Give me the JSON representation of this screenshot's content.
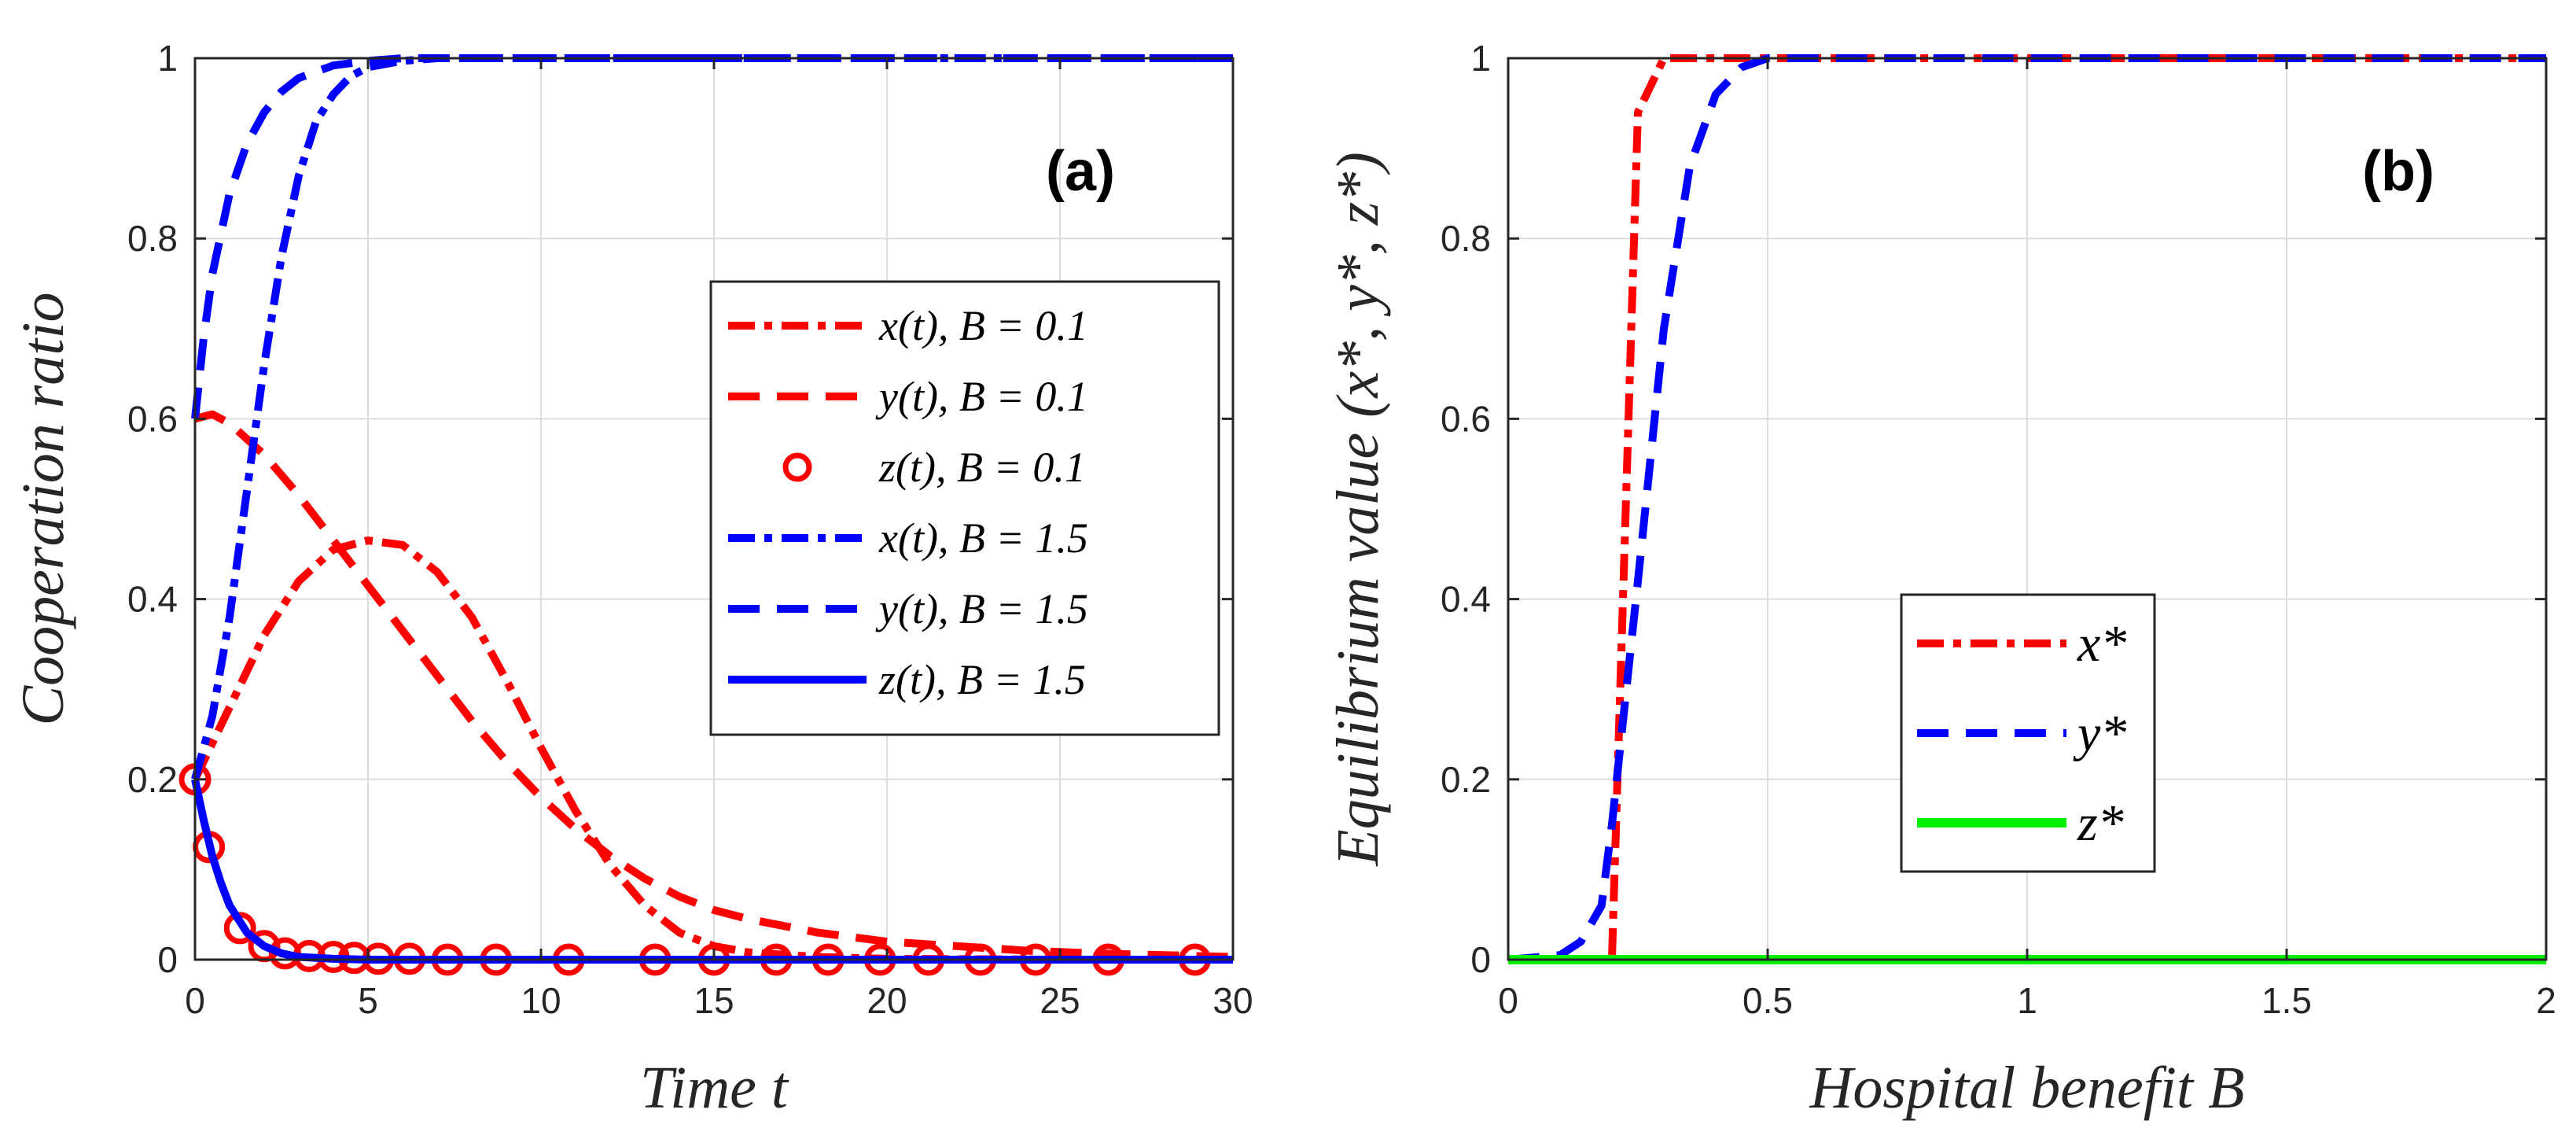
{
  "chart_data": [
    {
      "type": "line",
      "panel_label": "(a)",
      "xlabel": "Time  t",
      "ylabel": "Cooperation  ratio",
      "xlim": [
        0,
        30
      ],
      "ylim": [
        0,
        1
      ],
      "xticks": [
        0,
        5,
        10,
        15,
        20,
        25,
        30
      ],
      "yticks": [
        0,
        0.2,
        0.4,
        0.6,
        0.8,
        1
      ],
      "ytick_labels": [
        "0",
        "0.2",
        "0.4",
        "0.6",
        "0.8",
        "1"
      ],
      "grid": true,
      "legend_position": "center-right",
      "series": [
        {
          "name": "x(t), B = 0.1",
          "color": "#ff0000",
          "dash": "dashdot",
          "x": [
            0,
            1,
            2,
            3,
            4,
            5,
            6,
            7,
            8,
            9,
            10,
            11,
            12,
            13,
            14,
            15,
            16,
            18,
            20,
            25,
            30
          ],
          "y": [
            0.2,
            0.28,
            0.36,
            0.42,
            0.455,
            0.465,
            0.46,
            0.43,
            0.38,
            0.31,
            0.235,
            0.165,
            0.105,
            0.06,
            0.03,
            0.015,
            0.008,
            0.003,
            0.001,
            0,
            0
          ]
        },
        {
          "name": "y(t), B = 0.1",
          "color": "#ff0000",
          "dash": "dash",
          "x": [
            0,
            0.5,
            1,
            2,
            3,
            4,
            5,
            6,
            7,
            8,
            9,
            10,
            11,
            12,
            13,
            14,
            15,
            16,
            18,
            20,
            22,
            24,
            26,
            28,
            30
          ],
          "y": [
            0.6,
            0.605,
            0.595,
            0.56,
            0.515,
            0.465,
            0.415,
            0.365,
            0.315,
            0.265,
            0.22,
            0.18,
            0.145,
            0.115,
            0.09,
            0.07,
            0.055,
            0.045,
            0.03,
            0.02,
            0.015,
            0.01,
            0.007,
            0.005,
            0.003
          ]
        },
        {
          "name": "z(t), B = 0.1",
          "color": "#ff0000",
          "marker": "circle",
          "x": [
            0,
            0.4,
            1.3,
            2,
            2.6,
            3.3,
            4,
            4.6,
            5.3,
            6.2,
            7.3,
            8.7,
            10.8,
            13.3,
            15,
            16.8,
            18.3,
            19.8,
            21.2,
            22.7,
            24.3,
            26.4,
            28.9
          ],
          "y": [
            0.2,
            0.125,
            0.035,
            0.015,
            0.007,
            0.004,
            0.003,
            0.002,
            0.001,
            0.001,
            0,
            0,
            0,
            0,
            0,
            0,
            0,
            0,
            0,
            0,
            0,
            0,
            0
          ]
        },
        {
          "name": "x(t), B = 1.5",
          "color": "#0000ff",
          "dash": "dashdot",
          "x": [
            0,
            0.5,
            1,
            1.5,
            2,
            2.5,
            3,
            3.5,
            4,
            4.5,
            5,
            6,
            7,
            8,
            10,
            15,
            30
          ],
          "y": [
            0.2,
            0.27,
            0.38,
            0.52,
            0.66,
            0.78,
            0.87,
            0.93,
            0.96,
            0.98,
            0.99,
            0.997,
            1,
            1,
            1,
            1,
            1
          ]
        },
        {
          "name": "y(t), B = 1.5",
          "color": "#0000ff",
          "dash": "dash",
          "x": [
            0,
            0.25,
            0.5,
            1,
            1.5,
            2,
            2.5,
            3,
            4,
            5,
            6,
            8,
            10,
            15,
            30
          ],
          "y": [
            0.6,
            0.69,
            0.76,
            0.85,
            0.905,
            0.94,
            0.963,
            0.978,
            0.992,
            0.997,
            1,
            1,
            1,
            1,
            1
          ]
        },
        {
          "name": "z(t), B = 1.5",
          "color": "#0000ff",
          "dash": "solid",
          "x": [
            0,
            0.25,
            0.5,
            0.75,
            1,
            1.5,
            2,
            2.5,
            3,
            4,
            5,
            7,
            10,
            15,
            20,
            30
          ],
          "y": [
            0.2,
            0.155,
            0.115,
            0.085,
            0.06,
            0.03,
            0.015,
            0.007,
            0.003,
            0.001,
            0,
            0,
            0,
            0,
            0,
            0
          ]
        }
      ]
    },
    {
      "type": "line",
      "panel_label": "(b)",
      "xlabel": "Hospital  benefit  B",
      "ylabel": "Equilibrium  value  (x*, y*, z*)",
      "xlim": [
        0,
        2
      ],
      "ylim": [
        0,
        1
      ],
      "xticks": [
        0,
        0.5,
        1,
        1.5,
        2
      ],
      "yticks": [
        0,
        0.2,
        0.4,
        0.6,
        0.8,
        1
      ],
      "ytick_labels": [
        "0",
        "0.2",
        "0.4",
        "0.6",
        "0.8",
        "1"
      ],
      "grid": true,
      "legend_position": "center",
      "series": [
        {
          "name": "x*",
          "color": "#ff0000",
          "dash": "dashdot",
          "x": [
            0,
            0.18,
            0.2,
            0.25,
            0.3,
            0.5,
            1,
            1.5,
            2
          ],
          "y": [
            0,
            0,
            0.002,
            0.94,
            1,
            1,
            1,
            1,
            1
          ]
        },
        {
          "name": "y*",
          "color": "#0000ff",
          "dash": "dash",
          "x": [
            0,
            0.1,
            0.14,
            0.18,
            0.2,
            0.25,
            0.3,
            0.35,
            0.4,
            0.45,
            0.5,
            1,
            1.5,
            2
          ],
          "y": [
            0,
            0.005,
            0.02,
            0.06,
            0.15,
            0.42,
            0.7,
            0.88,
            0.96,
            0.99,
            1,
            1,
            1,
            1
          ]
        },
        {
          "name": "z*",
          "color": "#00ee00",
          "dash": "solid",
          "x": [
            0,
            0.5,
            1,
            1.5,
            2
          ],
          "y": [
            0,
            0,
            0,
            0,
            0
          ]
        }
      ]
    }
  ]
}
